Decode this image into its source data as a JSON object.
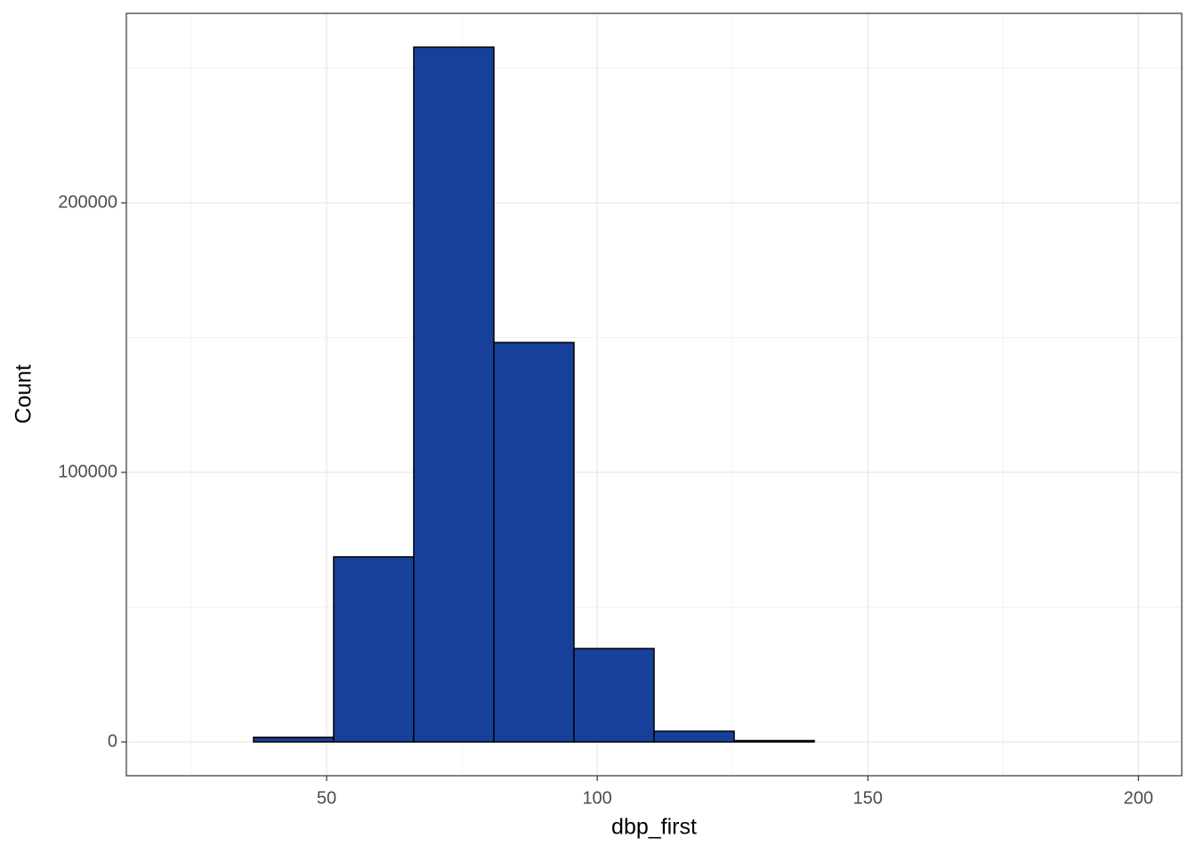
{
  "chart_data": {
    "type": "histogram",
    "x_label": "dbp_first",
    "y_label": "Count",
    "bins": [
      21.7,
      36.5,
      51.3,
      66.1,
      80.9,
      95.7,
      110.5,
      125.3,
      140.1,
      154.9,
      169.7,
      184.5,
      199.3
    ],
    "values": [
      0,
      1700,
      68650,
      257750,
      148180,
      34650,
      3960,
      500,
      0,
      0,
      0,
      0
    ],
    "color": "#17409a",
    "edge_color": "#000000",
    "xlim": [
      13,
      208
    ],
    "ylim": [
      -12540,
      270300
    ],
    "xticks": [
      50,
      100,
      150,
      200
    ],
    "yticks": [
      0,
      100000,
      200000
    ],
    "x_minor_ticks": [
      25,
      75,
      125,
      175
    ],
    "y_minor_ticks": [
      50000,
      150000,
      250000
    ],
    "grid": true
  }
}
